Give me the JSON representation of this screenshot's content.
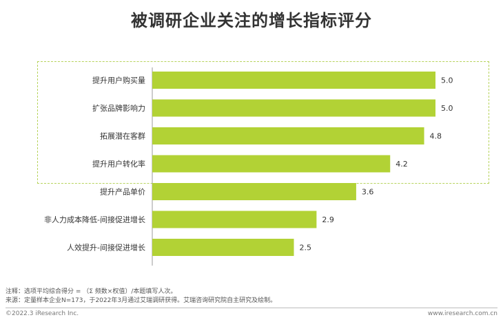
{
  "chart_data": {
    "type": "bar",
    "orientation": "horizontal",
    "title": "被调研企业关注的增长指标评分",
    "categories": [
      "提升用户购买量",
      "扩张品牌影响力",
      "拓展潜在客群",
      "提升用户转化率",
      "提升产品单价",
      "非人力成本降低-间接促进增长",
      "人效提升-间接促进增长"
    ],
    "values": [
      5.0,
      5.0,
      4.8,
      4.2,
      3.6,
      2.9,
      2.5
    ],
    "value_labels": [
      "5.0",
      "5.0",
      "4.8",
      "4.2",
      "3.6",
      "2.9",
      "2.5"
    ],
    "xlim": [
      0,
      5
    ],
    "bar_color": "#b2d235",
    "highlight_color": "#b6d35a",
    "grid": false
  },
  "notes": {
    "line1": "注释：选项平均综合得分 = （Σ 频数×权值）/本题填写人次。",
    "line2": "来源：定量样本企业N=173，于2022年3月通过艾瑞调研获得。艾瑞咨询研究院自主研究及绘制。"
  },
  "footer": {
    "copyright": "©2022.3 iResearch Inc.",
    "url": "www.iresearch.com.cn"
  }
}
